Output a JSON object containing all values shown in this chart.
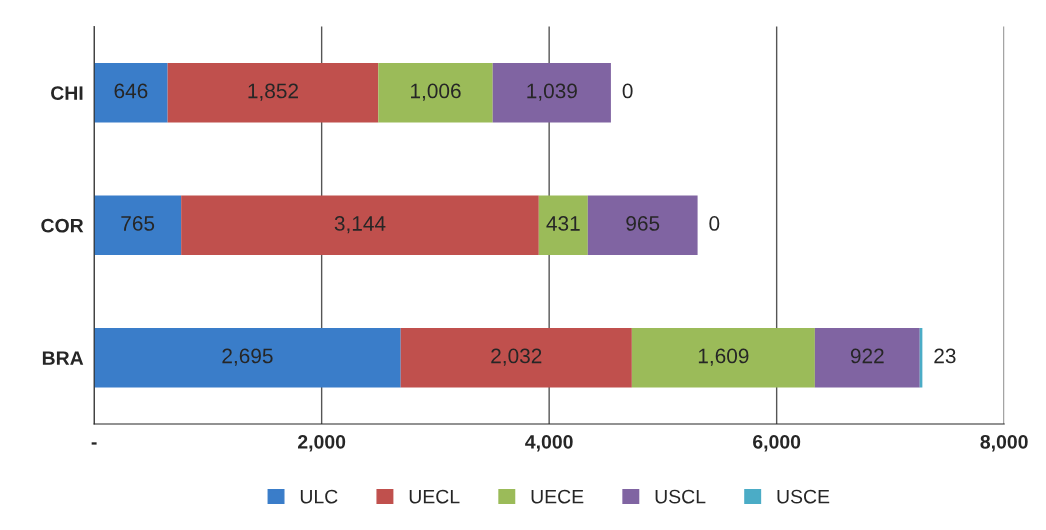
{
  "chart_data": {
    "type": "bar",
    "orientation": "horizontal",
    "stacked": true,
    "categories": [
      "CHI",
      "COR",
      "BRA"
    ],
    "series": [
      {
        "name": "ULC",
        "color": "#3a7dc9",
        "values": [
          646,
          765,
          2695
        ],
        "value_labels": [
          "646",
          "765",
          "2,695"
        ]
      },
      {
        "name": "UECL",
        "color": "#c0504d",
        "values": [
          1852,
          3144,
          2032
        ],
        "value_labels": [
          "1,852",
          "3,144",
          "2,032"
        ]
      },
      {
        "name": "UECE",
        "color": "#9bbb59",
        "values": [
          1006,
          431,
          1609
        ],
        "value_labels": [
          "1,006",
          "431",
          "1,609"
        ]
      },
      {
        "name": "USCL",
        "color": "#8064a2",
        "values": [
          1039,
          965,
          922
        ],
        "value_labels": [
          "1,039",
          "965",
          "922"
        ]
      },
      {
        "name": "USCE",
        "color": "#4bacc6",
        "values": [
          0,
          0,
          23
        ],
        "value_labels": [
          "0",
          "0",
          "23"
        ]
      }
    ],
    "xlim": [
      0,
      8000
    ],
    "xticks": [
      {
        "value": 0,
        "label": "-"
      },
      {
        "value": 2000,
        "label": "2,000"
      },
      {
        "value": 4000,
        "label": "4,000"
      },
      {
        "value": 6000,
        "label": "6,000"
      },
      {
        "value": 8000,
        "label": "8,000"
      }
    ],
    "grid": "x",
    "legend": "bottom"
  }
}
